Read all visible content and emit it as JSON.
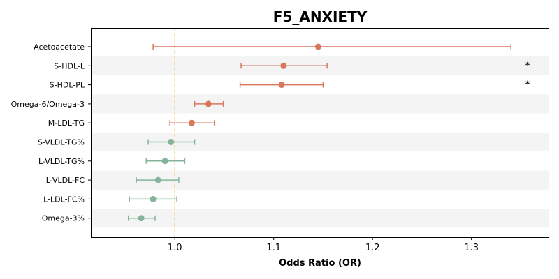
{
  "chart_data": {
    "type": "forest",
    "title": "F5_ANXIETY",
    "xlabel": "Odds Ratio (OR)",
    "ylabel": "",
    "xlim": [
      0.915,
      1.378
    ],
    "xticks": [
      "1.0",
      "1.1",
      "1.2",
      "1.3"
    ],
    "xtick_values": [
      1.0,
      1.1,
      1.2,
      1.3
    ],
    "reference_line": 1.0,
    "reference_line_color": "#f5c37a",
    "grid": false,
    "alternating_row_shading": true,
    "colors": {
      "positive": "#d9775c",
      "negative": "#84b59c",
      "band": "#f4f4f4"
    },
    "rows": [
      {
        "label": "Acetoacetate",
        "or": 1.145,
        "lo": 0.978,
        "hi": 1.34,
        "significant": false,
        "marker": ""
      },
      {
        "label": "S-HDL-L",
        "or": 1.11,
        "lo": 1.067,
        "hi": 1.154,
        "significant": true,
        "marker": "*"
      },
      {
        "label": "S-HDL-PL",
        "or": 1.108,
        "lo": 1.066,
        "hi": 1.15,
        "significant": true,
        "marker": "*"
      },
      {
        "label": "Omega-6/Omega-3",
        "or": 1.034,
        "lo": 1.02,
        "hi": 1.049,
        "significant": false,
        "marker": ""
      },
      {
        "label": "M-LDL-TG",
        "or": 1.017,
        "lo": 0.995,
        "hi": 1.04,
        "significant": false,
        "marker": ""
      },
      {
        "label": "S-VLDL-TG%",
        "or": 0.996,
        "lo": 0.973,
        "hi": 1.02,
        "significant": false,
        "marker": ""
      },
      {
        "label": "L-VLDL-TG%",
        "or": 0.99,
        "lo": 0.971,
        "hi": 1.01,
        "significant": false,
        "marker": ""
      },
      {
        "label": "L-VLDL-FC",
        "or": 0.983,
        "lo": 0.961,
        "hi": 1.004,
        "significant": false,
        "marker": ""
      },
      {
        "label": "L-LDL-FC%",
        "or": 0.978,
        "lo": 0.954,
        "hi": 1.002,
        "significant": false,
        "marker": ""
      },
      {
        "label": "Omega-3%",
        "or": 0.966,
        "lo": 0.953,
        "hi": 0.98,
        "significant": false,
        "marker": ""
      }
    ]
  }
}
